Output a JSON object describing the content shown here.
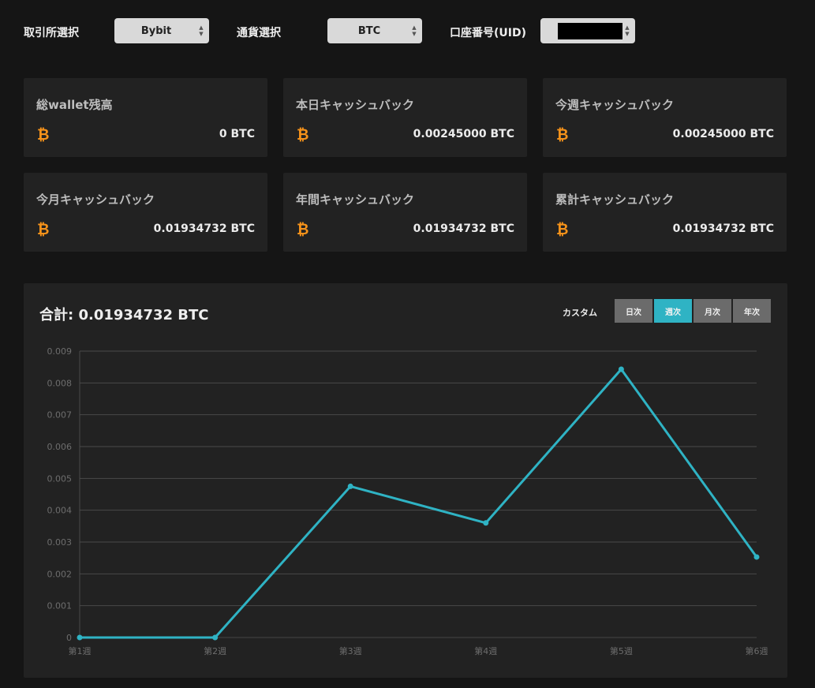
{
  "colors": {
    "accent": "#2fb3c4",
    "bitcoin": "#f7931a",
    "panel": "#222222",
    "background": "#151515"
  },
  "selectors": {
    "exchange": {
      "label": "取引所選択",
      "value": "Bybit"
    },
    "currency": {
      "label": "通貨選択",
      "value": "BTC"
    },
    "uid": {
      "label": "口座番号(UID)",
      "value": ""
    }
  },
  "cards": [
    {
      "title": "総wallet残高",
      "value": "0 BTC",
      "icon": "bitcoin-icon"
    },
    {
      "title": "本日キャッシュバック",
      "value": "0.00245000 BTC",
      "icon": "bitcoin-icon"
    },
    {
      "title": "今週キャッシュバック",
      "value": "0.00245000 BTC",
      "icon": "bitcoin-icon"
    },
    {
      "title": "今月キャッシュバック",
      "value": "0.01934732 BTC",
      "icon": "bitcoin-icon"
    },
    {
      "title": "年間キャッシュバック",
      "value": "0.01934732 BTC",
      "icon": "bitcoin-icon"
    },
    {
      "title": "累計キャッシュバック",
      "value": "0.01934732 BTC",
      "icon": "bitcoin-icon"
    }
  ],
  "chart_panel": {
    "total": "合計: 0.01934732 BTC",
    "custom_label": "カスタム",
    "periods": [
      {
        "label": "日次",
        "active": false
      },
      {
        "label": "週次",
        "active": true
      },
      {
        "label": "月次",
        "active": false
      },
      {
        "label": "年次",
        "active": false
      }
    ]
  },
  "chart_data": {
    "type": "line",
    "title": "",
    "xlabel": "",
    "ylabel": "",
    "categories": [
      "第1週",
      "第2週",
      "第3週",
      "第4週",
      "第5週",
      "第6週"
    ],
    "values": [
      0,
      0,
      0.00475,
      0.0036,
      0.00843,
      0.00253
    ],
    "ylim": [
      0,
      0.009
    ],
    "yticks": [
      "0",
      "0.001",
      "0.002",
      "0.003",
      "0.004",
      "0.005",
      "0.006",
      "0.007",
      "0.008",
      "0.009"
    ],
    "grid": true,
    "legend": "none",
    "color": "#2fb3c4"
  }
}
